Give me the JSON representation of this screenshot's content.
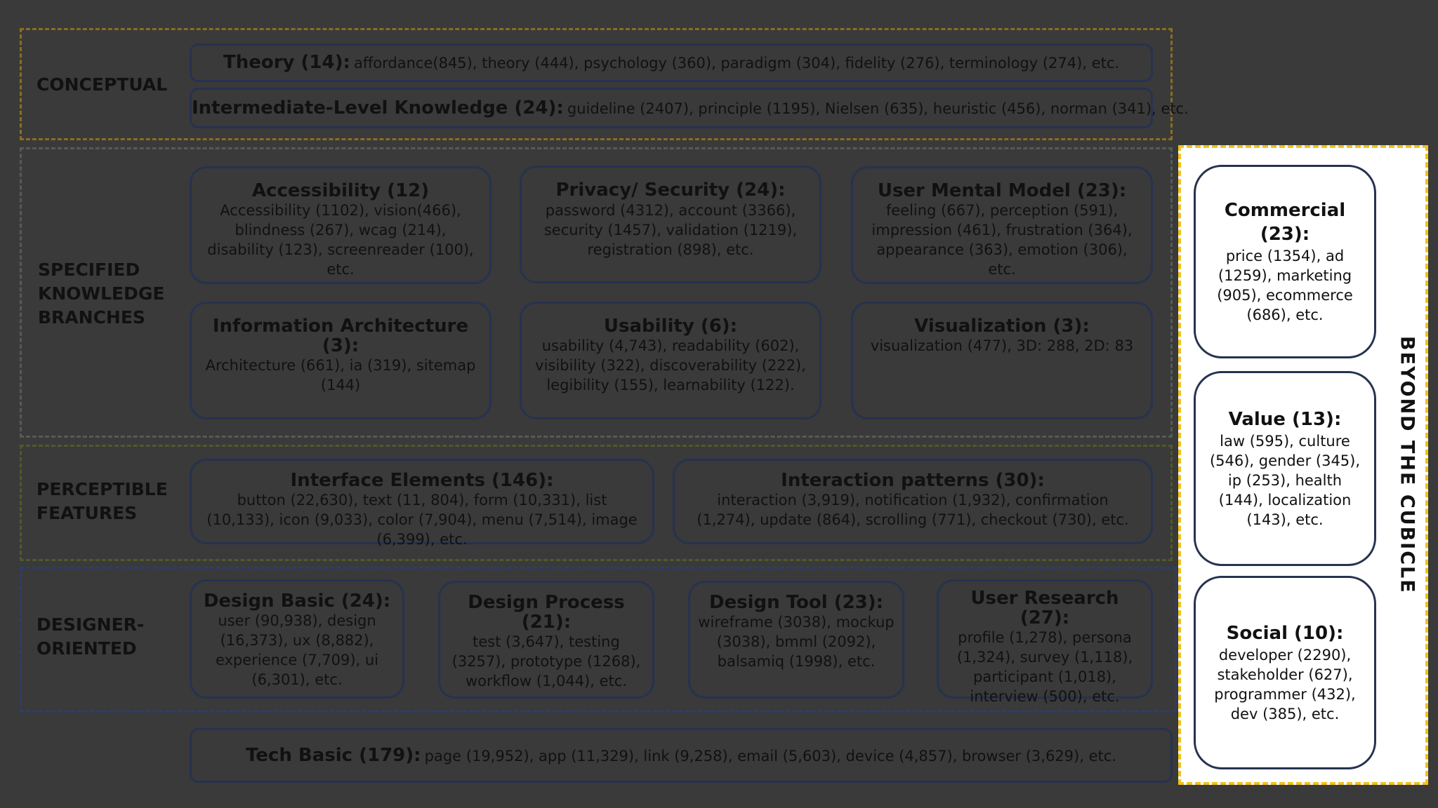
{
  "bands": {
    "conceptual": {
      "label": "CONCEPTUAL",
      "color": "#8a6e1f",
      "items": [
        {
          "title": "Theory (14):",
          "detail": "affordance(845), theory (444), psychology (360), paradigm (304), fidelity (276), terminology (274), etc."
        },
        {
          "title": "Intermediate-Level Knowledge (24):",
          "detail": "guideline (2407), principle (1195), Nielsen (635), heuristic (456), norman (341), etc."
        }
      ]
    },
    "specified": {
      "label": "SPECIFIED\nKNOWLEDGE\nBRANCHES",
      "color": "#555b55",
      "items": [
        {
          "title": "Accessibility (12)",
          "detail": "Accessibility (1102), vision(466), blindness (267), wcag (214), disability (123), screenreader (100), etc."
        },
        {
          "title": "Privacy/ Security (24):",
          "detail": "password (4312), account (3366), security (1457), validation (1219), registration (898), etc."
        },
        {
          "title": "User Mental Model (23):",
          "detail": "feeling (667), perception (591), impression (461), frustration (364), appearance (363), emotion (306), etc."
        },
        {
          "title": "Information Architecture (3):",
          "detail": "Architecture (661), ia (319), sitemap (144)"
        },
        {
          "title": "Usability (6):",
          "detail": "usability (4,743), readability (602), visibility (322), discoverability (222), legibility (155), learnability (122)."
        },
        {
          "title": "Visualization (3):",
          "detail": "visualization (477), 3D: 288, 2D: 83"
        }
      ]
    },
    "perceptible": {
      "label": "PERCEPTIBLE\nFEATURES",
      "color": "#4f5a2a",
      "items": [
        {
          "title": "Interface Elements (146):",
          "detail": "button (22,630), text (11, 804), form (10,331), list (10,133), icon (9,033), color (7,904), menu (7,514), image (6,399), etc."
        },
        {
          "title": "Interaction patterns (30):",
          "detail": "interaction (3,919), notification (1,932), confirmation (1,274), update (864), scrolling (771), checkout (730), etc."
        }
      ]
    },
    "designer": {
      "label": "DESIGNER-\nORIENTED",
      "color": "#2c3e70",
      "items": [
        {
          "title": "Design Basic (24):",
          "detail": "user (90,938), design (16,373), ux (8,882), experience (7,709), ui (6,301), etc."
        },
        {
          "title": "Design Process (21):",
          "detail": "test (3,647), testing (3257), prototype (1268), workflow (1,044), etc."
        },
        {
          "title": "Design Tool (23):",
          "detail": "wireframe (3038), mockup (3038), bmml (2092), balsamiq (1998), etc."
        },
        {
          "title": "User Research (27):",
          "detail": "profile (1,278), persona (1,324), survey (1,118), participant (1,018), interview (500), etc."
        }
      ]
    }
  },
  "tech_basic": {
    "title": "Tech Basic (179):",
    "detail": "page (19,952), app (11,329), link (9,258), email (5,603), device (4,857), browser (3,629), etc."
  },
  "beyond": {
    "label": "BEYOND THE CUBICLE",
    "color": "#f2c21b",
    "items": [
      {
        "title": "Commercial (23):",
        "detail": "price (1354), ad (1259), marketing (905), ecommerce (686), etc."
      },
      {
        "title": "Value (13):",
        "detail": "law (595), culture (546), gender (345), ip (253), health (144), localization (143), etc."
      },
      {
        "title": "Social (10):",
        "detail": "developer (2290), stakeholder (627), programmer (432), dev (385), etc."
      }
    ]
  }
}
